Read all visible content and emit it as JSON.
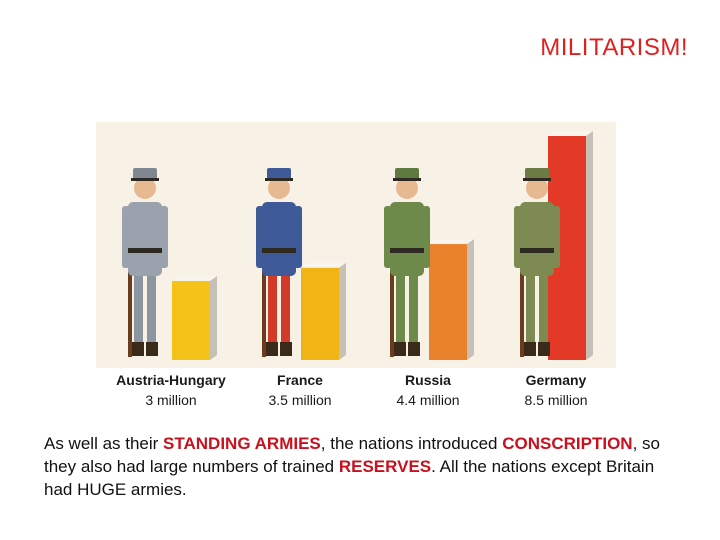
{
  "slide": {
    "title": "MILITARISM!"
  },
  "armies": [
    {
      "country": "Austria-Hungary",
      "size_label": "3 million",
      "size_millions": 3.0,
      "bar_color": "#f5c21a"
    },
    {
      "country": "France",
      "size_label": "3.5 million",
      "size_millions": 3.5,
      "bar_color": "#f0b414"
    },
    {
      "country": "Russia",
      "size_label": "4.4 million",
      "size_millions": 4.4,
      "bar_color": "#e9822a"
    },
    {
      "country": "Germany",
      "size_label": "8.5 million",
      "size_millions": 8.5,
      "bar_color": "#e23a26"
    }
  ],
  "caption": {
    "p1": "As well as their ",
    "k1": "STANDING ARMIES",
    "p2": ", the nations introduced ",
    "k2": "CONSCRIPTION",
    "p3": ",  so they also had large numbers of trained ",
    "k3": "RESERVES",
    "p4": ".   All the nations except Britain had HUGE armies."
  }
}
